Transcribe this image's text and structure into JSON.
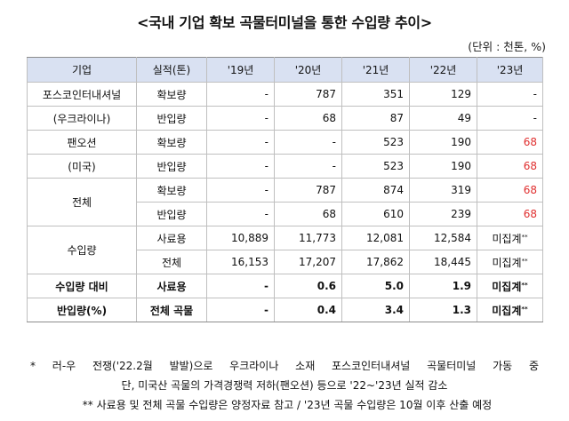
{
  "title": "<국내 기업 확보 곡물터미널을 통한 수입량 추이>",
  "unit": "(단위 : 천톤, %)",
  "headers": [
    "기업",
    "실적(톤)",
    "'19년",
    "'20년",
    "'21년",
    "'22년",
    "'23년"
  ],
  "rows": [
    {
      "group": "포스코인터내셔널",
      "metric": "확보량",
      "values": [
        "-",
        "787",
        "351",
        "129",
        "-"
      ]
    },
    {
      "group": "(우크라이나)",
      "metric": "반입량",
      "values": [
        "-",
        "68",
        "87",
        "49",
        "-"
      ]
    },
    {
      "group": "팬오션",
      "metric": "확보량",
      "values": [
        "-",
        "-",
        "523",
        "190",
        "68"
      ]
    },
    {
      "group": "(미국)",
      "metric": "반입량",
      "values": [
        "-",
        "-",
        "523",
        "190",
        "68"
      ]
    },
    {
      "group": "전체",
      "metric": "확보량",
      "values": [
        "-",
        "787",
        "874",
        "319",
        "68"
      ]
    },
    {
      "group": "",
      "metric": "반입량",
      "values": [
        "-",
        "68",
        "610",
        "239",
        "68"
      ]
    },
    {
      "group": "수입량",
      "metric": "사료용",
      "values": [
        "10,889",
        "11,773",
        "12,081",
        "12,584",
        "미집계"
      ]
    },
    {
      "group": "",
      "metric": "전체",
      "values": [
        "16,153",
        "17,207",
        "17,862",
        "18,445",
        "미집계"
      ]
    },
    {
      "group": "수입량 대비",
      "metric": "사료용",
      "values": [
        "-",
        "0.6",
        "5.0",
        "1.9",
        "미집계"
      ]
    },
    {
      "group": "반입량(%)",
      "metric": "전체 곡물",
      "values": [
        "-",
        "0.4",
        "3.4",
        "1.3",
        "미집계"
      ]
    }
  ],
  "note_mark": "**",
  "highlight_color": "#e03030",
  "notes": {
    "note1_line1": "* 러-우 전쟁('22.2월 발발)으로 우크라이나 소재 포스코인터내셔널 곡물터미널 가동 중",
    "note1_line2": "단, 미국산 곡물의 가격경쟁력 저하(팬오션) 등으로 '22~'23년 실적 감소",
    "note2": "** 사료용 및 전체 곡물 수입량은 양정자료 참고 / '23년 곡물 수입량은 10월 이후 산출 예정"
  }
}
